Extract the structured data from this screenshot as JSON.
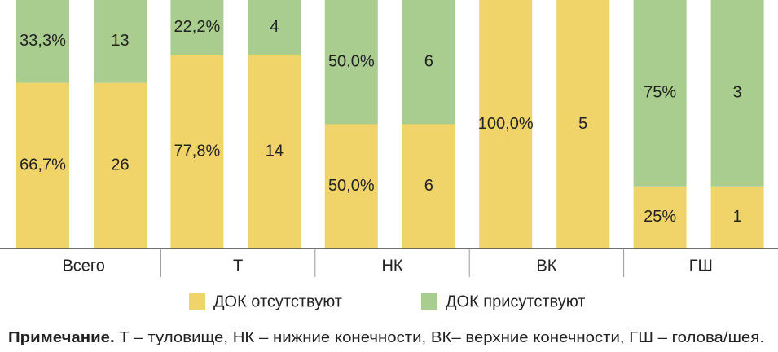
{
  "chart_data": {
    "type": "bar",
    "stacked": "percent",
    "categories": [
      "Всего",
      "Т",
      "НК",
      "ВК",
      "ГШ"
    ],
    "series": [
      {
        "name": "ДОК отсутствуют",
        "color": "#f0d46a",
        "values": [
          66.7,
          77.8,
          50.0,
          100.0,
          25
        ],
        "value_labels": [
          "66,7%",
          "77,8%",
          "50,0%",
          "100,0%",
          "25%"
        ],
        "counts": [
          26,
          14,
          6,
          5,
          1
        ]
      },
      {
        "name": "ДОК присутствуют",
        "color": "#a9cd8e",
        "values": [
          33.3,
          22.2,
          50.0,
          0,
          75
        ],
        "value_labels": [
          "33,3%",
          "22,2%",
          "50,0%",
          null,
          "75%"
        ],
        "counts": [
          13,
          4,
          6,
          0,
          3
        ]
      }
    ],
    "note": {
      "label": "Примечание.",
      "text": "Т – туловище, НК – нижние конечности, ВК– верхние конечности, ГШ – голова/шея."
    }
  }
}
